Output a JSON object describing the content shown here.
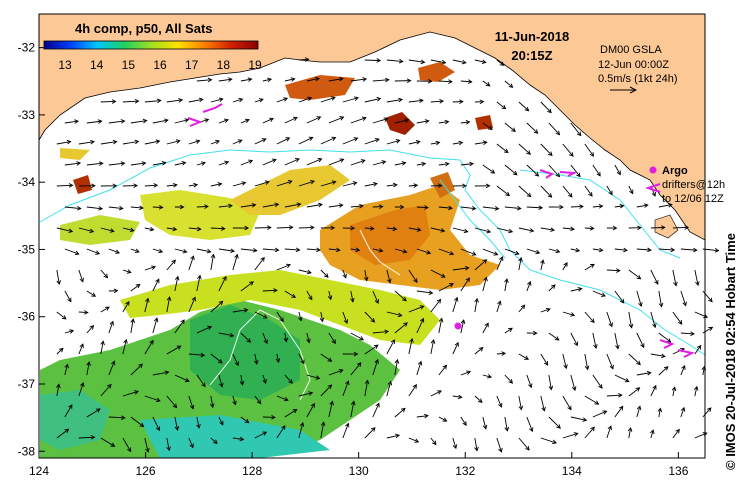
{
  "colorbar": {
    "title": "4h comp, p50, All Sats",
    "labels": [
      "13",
      "14",
      "15",
      "16",
      "17",
      "18",
      "19"
    ],
    "colors": [
      "#00008b",
      "#0040ff",
      "#00c8ff",
      "#20d060",
      "#a0e020",
      "#ffe000",
      "#ff8000",
      "#d02000",
      "#8b0000"
    ]
  },
  "header": {
    "date": "11-Jun-2018",
    "time": "20:15Z"
  },
  "legend": {
    "model": "DM00 GSLA",
    "model_time": "12-Jun 00:00Z",
    "vector_scale": "0.5m/s (1kt 24h)",
    "argo_label": "Argo",
    "drifter_label": "drifters@12h",
    "drifter_range": "to 12/06 12Z",
    "argo_color": "#e020e0",
    "drifter_color": "#e020e0"
  },
  "axes": {
    "x_ticks": [
      "124",
      "126",
      "128",
      "130",
      "132",
      "134",
      "136"
    ],
    "y_ticks": [
      "-32",
      "-33",
      "-34",
      "-35",
      "-36",
      "-37",
      "-38"
    ],
    "lon_range": [
      124,
      136.5
    ],
    "lat_range": [
      -31.5,
      -38.1
    ]
  },
  "credit": "© IMOS 20-Jul-2018 02:54 Hobart Time",
  "land_color": "#fcc896"
}
